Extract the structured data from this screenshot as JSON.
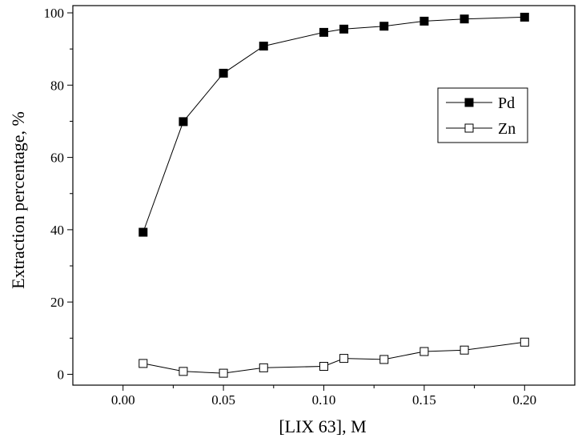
{
  "chart_data": {
    "type": "line",
    "xlabel": "[LIX 63], M",
    "ylabel": "Extraction percentage, %",
    "xlim": [
      -0.025,
      0.225
    ],
    "ylim": [
      -3,
      102
    ],
    "x_ticks": [
      0.0,
      0.05,
      0.1,
      0.15,
      0.2
    ],
    "x_tick_labels": [
      "0.00",
      "0.05",
      "0.10",
      "0.15",
      "0.20"
    ],
    "y_ticks": [
      0,
      20,
      40,
      60,
      80,
      100
    ],
    "y_tick_labels": [
      "0",
      "20",
      "40",
      "60",
      "80",
      "100"
    ],
    "legend_position": "top-right",
    "grid": false,
    "series": [
      {
        "name": "Pd",
        "marker": "filled-square",
        "color": "#000000",
        "x": [
          0.01,
          0.03,
          0.05,
          0.07,
          0.1,
          0.11,
          0.13,
          0.15,
          0.17,
          0.2
        ],
        "y": [
          39.3,
          69.9,
          83.3,
          90.8,
          94.6,
          95.5,
          96.3,
          97.7,
          98.3,
          98.8
        ]
      },
      {
        "name": "Zn",
        "marker": "open-square",
        "color": "#000000",
        "x": [
          0.01,
          0.03,
          0.05,
          0.07,
          0.1,
          0.11,
          0.13,
          0.15,
          0.17,
          0.2
        ],
        "y": [
          3.0,
          0.8,
          0.3,
          1.8,
          2.2,
          4.4,
          4.1,
          6.3,
          6.7,
          8.9
        ]
      }
    ]
  }
}
